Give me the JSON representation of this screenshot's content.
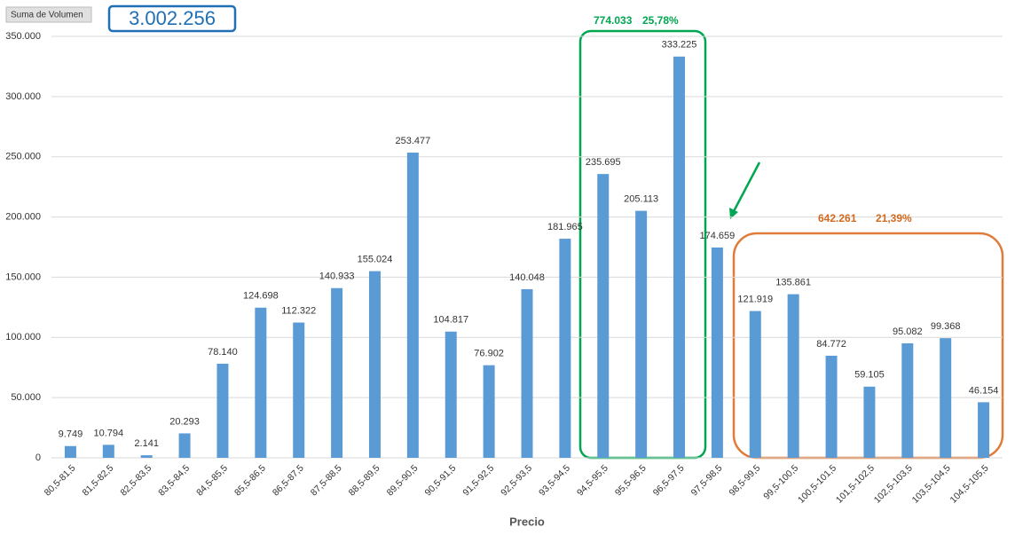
{
  "chart_data": {
    "type": "bar",
    "button": "Suma de Volumen",
    "total": "3.002.256",
    "x_label": "Precio",
    "annotations": [
      {
        "texts": [
          "774.033",
          "25,78%"
        ],
        "color": "#00a651"
      },
      {
        "texts": [
          "642.261",
          "21,39%"
        ],
        "color": "#d2691e"
      }
    ],
    "categories": [
      "80,5-81,5",
      "81,5-82,5",
      "82,5-83,5",
      "83,5-84,5",
      "84,5-85,5",
      "85,5-86,5",
      "86,5-87,5",
      "87,5-88,5",
      "88,5-89,5",
      "89,5-90,5",
      "90,5-91,5",
      "91,5-92,5",
      "92,5-93,5",
      "93,5-94,5",
      "94,5-95,5",
      "95,5-96,5",
      "96,5-97,5",
      "97,5-98,5",
      "98,5-99,5",
      "99,5-100,5",
      "100,5-101,5",
      "101,5-102,5",
      "102,5-103,5",
      "103,5-104,5",
      "104,5-105,5"
    ],
    "values": [
      9749,
      10794,
      2141,
      20293,
      78140,
      124698,
      112322,
      140933,
      155024,
      253477,
      104817,
      76902,
      140048,
      181965,
      235695,
      205113,
      333225,
      174659,
      121919,
      135861,
      84772,
      59105,
      95082,
      99368,
      46154
    ],
    "value_labels": [
      "9.749",
      "10.794",
      "2.141",
      "20.293",
      "78.140",
      "124.698",
      "112.322",
      "140.933",
      "155.024",
      "253.477",
      "104.817",
      "76.902",
      "140.048",
      "181.965",
      "235.695",
      "205.113",
      "333.225",
      "174.659",
      "121.919",
      "135.861",
      "84.772",
      "59.105",
      "95.082",
      "99.368",
      "46.154"
    ],
    "color": "#5b9bd5",
    "ylim": [
      0,
      350000
    ],
    "yticks": [
      0,
      {
        "value": 50000,
        "label": "50.000"
      },
      {
        "value": 100000,
        "label": "100.000"
      },
      {
        "value": 150000,
        "label": "150.000"
      },
      {
        "value": 200000,
        "label": "200.000"
      },
      {
        "value": 250000,
        "label": "250.000"
      },
      {
        "value": 300000,
        "label": "300.000"
      },
      {
        "value": 350000,
        "label": "350.000"
      }
    ],
    "grid": true
  }
}
